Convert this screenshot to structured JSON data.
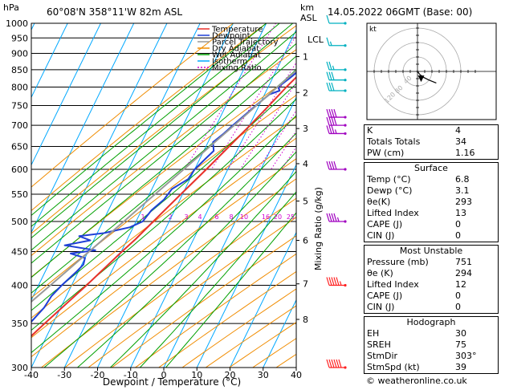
{
  "header": {
    "pressure_unit": "hPa",
    "location": "60°08'N  358°11'W  82m  ASL",
    "height_unit": "km",
    "height_unit2": "ASL",
    "datetime": "14.05.2022  06GMT  (Base: 00)"
  },
  "chart_data": {
    "type": "line",
    "xlabel": "Dewpoint / Temperature (°C)",
    "ylabel": "hPa",
    "xlim": [
      -40,
      40
    ],
    "ylim": [
      1000,
      300
    ],
    "y_scale": "log",
    "x_ticks": [
      "-40",
      "-30",
      "-20",
      "-10",
      "0",
      "10",
      "20",
      "30",
      "40"
    ],
    "p_ticks": [
      "300",
      "350",
      "400",
      "450",
      "500",
      "550",
      "600",
      "650",
      "700",
      "750",
      "800",
      "850",
      "900",
      "950",
      "1000"
    ],
    "right_axis_label": "Mixing Ratio (g/kg)",
    "km_ticks": [
      {
        "label": "8",
        "p": 355
      },
      {
        "label": "7",
        "p": 402
      },
      {
        "label": "6",
        "p": 468
      },
      {
        "label": "5",
        "p": 537
      },
      {
        "label": "4",
        "p": 612
      },
      {
        "label": "3",
        "p": 692
      },
      {
        "label": "2",
        "p": 785
      },
      {
        "label": "1",
        "p": 890
      }
    ],
    "lcl": {
      "label": "LCL",
      "p": 945
    },
    "mixing_ratio_labels": [
      "1",
      "2",
      "3",
      "4",
      "6",
      "8",
      "10",
      "16",
      "20",
      "25"
    ],
    "mixing_ratio_values": [
      1,
      2,
      3,
      4,
      6,
      8,
      10,
      16,
      20,
      25
    ],
    "legend_placement": "top-center",
    "legend": [
      {
        "name": "Temperature",
        "color": "#e8312a"
      },
      {
        "name": "Dewpoint",
        "color": "#1f3fd6"
      },
      {
        "name": "Parcel Trajectory",
        "color": "#999999"
      },
      {
        "name": "Dry Adiabat",
        "color": "#f08c00"
      },
      {
        "name": "Wet Adiabat",
        "color": "#00a000"
      },
      {
        "name": "Isotherm",
        "color": "#00a8ff"
      },
      {
        "name": "Mixing Ratio",
        "color": "#d000d0"
      }
    ],
    "series": [
      {
        "name": "Temperature",
        "color": "#e8312a",
        "points": [
          [
            1000,
            6.8
          ],
          [
            975,
            5.0
          ],
          [
            950,
            3.2
          ],
          [
            925,
            2.0
          ],
          [
            900,
            0.8
          ],
          [
            875,
            -0.5
          ],
          [
            850,
            -1.8
          ],
          [
            800,
            -4.5
          ],
          [
            750,
            -7.0
          ],
          [
            700,
            -9.8
          ],
          [
            650,
            -13.0
          ],
          [
            600,
            -16.5
          ],
          [
            550,
            -20.5
          ],
          [
            500,
            -24.8
          ],
          [
            470,
            -27.5
          ],
          [
            450,
            -29.8
          ],
          [
            400,
            -35.5
          ],
          [
            350,
            -42.5
          ],
          [
            320,
            -47.0
          ],
          [
            300,
            -49.5
          ]
        ]
      },
      {
        "name": "Dewpoint",
        "color": "#1f3fd6",
        "points": [
          [
            1000,
            3.1
          ],
          [
            950,
            1.0
          ],
          [
            925,
            0.2
          ],
          [
            900,
            -1.0
          ],
          [
            875,
            -2.0
          ],
          [
            850,
            -3.0
          ],
          [
            825,
            -4.8
          ],
          [
            800,
            -7.0
          ],
          [
            790,
            -6.0
          ],
          [
            780,
            -8.5
          ],
          [
            750,
            -11.0
          ],
          [
            700,
            -15.0
          ],
          [
            680,
            -16.5
          ],
          [
            660,
            -18.5
          ],
          [
            640,
            -17.0
          ],
          [
            620,
            -18.5
          ],
          [
            600,
            -20.0
          ],
          [
            580,
            -20.5
          ],
          [
            560,
            -24.0
          ],
          [
            540,
            -24.8
          ],
          [
            520,
            -27.0
          ],
          [
            500,
            -28.0
          ],
          [
            490,
            -31.0
          ],
          [
            480,
            -38.0
          ],
          [
            475,
            -45.0
          ],
          [
            468,
            -41.0
          ],
          [
            460,
            -48.0
          ],
          [
            452,
            -38.0
          ],
          [
            447,
            -45.0
          ],
          [
            440,
            -40.0
          ],
          [
            430,
            -39.5
          ],
          [
            420,
            -40.5
          ],
          [
            400,
            -43.0
          ],
          [
            385,
            -44.5
          ],
          [
            370,
            -45.0
          ],
          [
            350,
            -47.0
          ],
          [
            330,
            -47.5
          ],
          [
            315,
            -52.0
          ],
          [
            300,
            -55.0
          ]
        ]
      },
      {
        "name": "Parcel Trajectory",
        "color": "#999999",
        "points": [
          [
            1000,
            6.8
          ],
          [
            945,
            2.2
          ],
          [
            900,
            -0.6
          ],
          [
            850,
            -3.8
          ],
          [
            800,
            -7.2
          ],
          [
            750,
            -10.8
          ],
          [
            700,
            -14.6
          ],
          [
            650,
            -18.8
          ],
          [
            600,
            -23.3
          ],
          [
            550,
            -28.3
          ],
          [
            500,
            -33.7
          ],
          [
            450,
            -39.7
          ],
          [
            400,
            -46.4
          ],
          [
            350,
            -54.2
          ],
          [
            300,
            -63.0
          ]
        ]
      }
    ],
    "wind_barbs": [
      {
        "p": 300,
        "speed_kt": 60
      },
      {
        "p": 400,
        "speed_kt": 55
      },
      {
        "p": 500,
        "speed_kt": 45
      },
      {
        "p": 600,
        "speed_kt": 40
      },
      {
        "p": 680,
        "speed_kt": 35
      },
      {
        "p": 700,
        "speed_kt": 40
      },
      {
        "p": 720,
        "speed_kt": 40
      },
      {
        "p": 790,
        "speed_kt": 30
      },
      {
        "p": 820,
        "speed_kt": 30
      },
      {
        "p": 850,
        "speed_kt": 25
      },
      {
        "p": 925,
        "speed_kt": 15
      },
      {
        "p": 1000,
        "speed_kt": 10
      }
    ],
    "hodograph": {
      "label": "kt",
      "ring_labels": [
        "40",
        "80",
        "120"
      ],
      "points": [
        [
          0,
          0
        ],
        [
          3,
          -4
        ],
        [
          8,
          -8
        ],
        [
          16,
          -12
        ],
        [
          26,
          -16
        ]
      ],
      "storm_motion": [
        5,
        -9
      ]
    }
  },
  "indices": {
    "rows": [
      {
        "label": "K",
        "value": "4"
      },
      {
        "label": "Totals Totals",
        "value": "34"
      },
      {
        "label": "PW (cm)",
        "value": "1.16"
      }
    ]
  },
  "surface": {
    "title": "Surface",
    "rows": [
      {
        "label": "Temp (°C)",
        "value": "6.8"
      },
      {
        "label": "Dewp (°C)",
        "value": "3.1"
      },
      {
        "label": "θe(K)",
        "value": "293"
      },
      {
        "label": "Lifted Index",
        "value": "13"
      },
      {
        "label": "CAPE (J)",
        "value": "0"
      },
      {
        "label": "CIN (J)",
        "value": "0"
      }
    ]
  },
  "most_unstable": {
    "title": "Most Unstable",
    "rows": [
      {
        "label": "Pressure (mb)",
        "value": "751"
      },
      {
        "label": "θe (K)",
        "value": "294"
      },
      {
        "label": "Lifted Index",
        "value": "12"
      },
      {
        "label": "CAPE (J)",
        "value": "0"
      },
      {
        "label": "CIN (J)",
        "value": "0"
      }
    ]
  },
  "hodograph_table": {
    "title": "Hodograph",
    "rows": [
      {
        "label": "EH",
        "value": "30"
      },
      {
        "label": "SREH",
        "value": "75"
      },
      {
        "label": "StmDir",
        "value": "303°"
      },
      {
        "label": "StmSpd (kt)",
        "value": "39"
      }
    ]
  },
  "credit": "© weatheronline.co.uk"
}
